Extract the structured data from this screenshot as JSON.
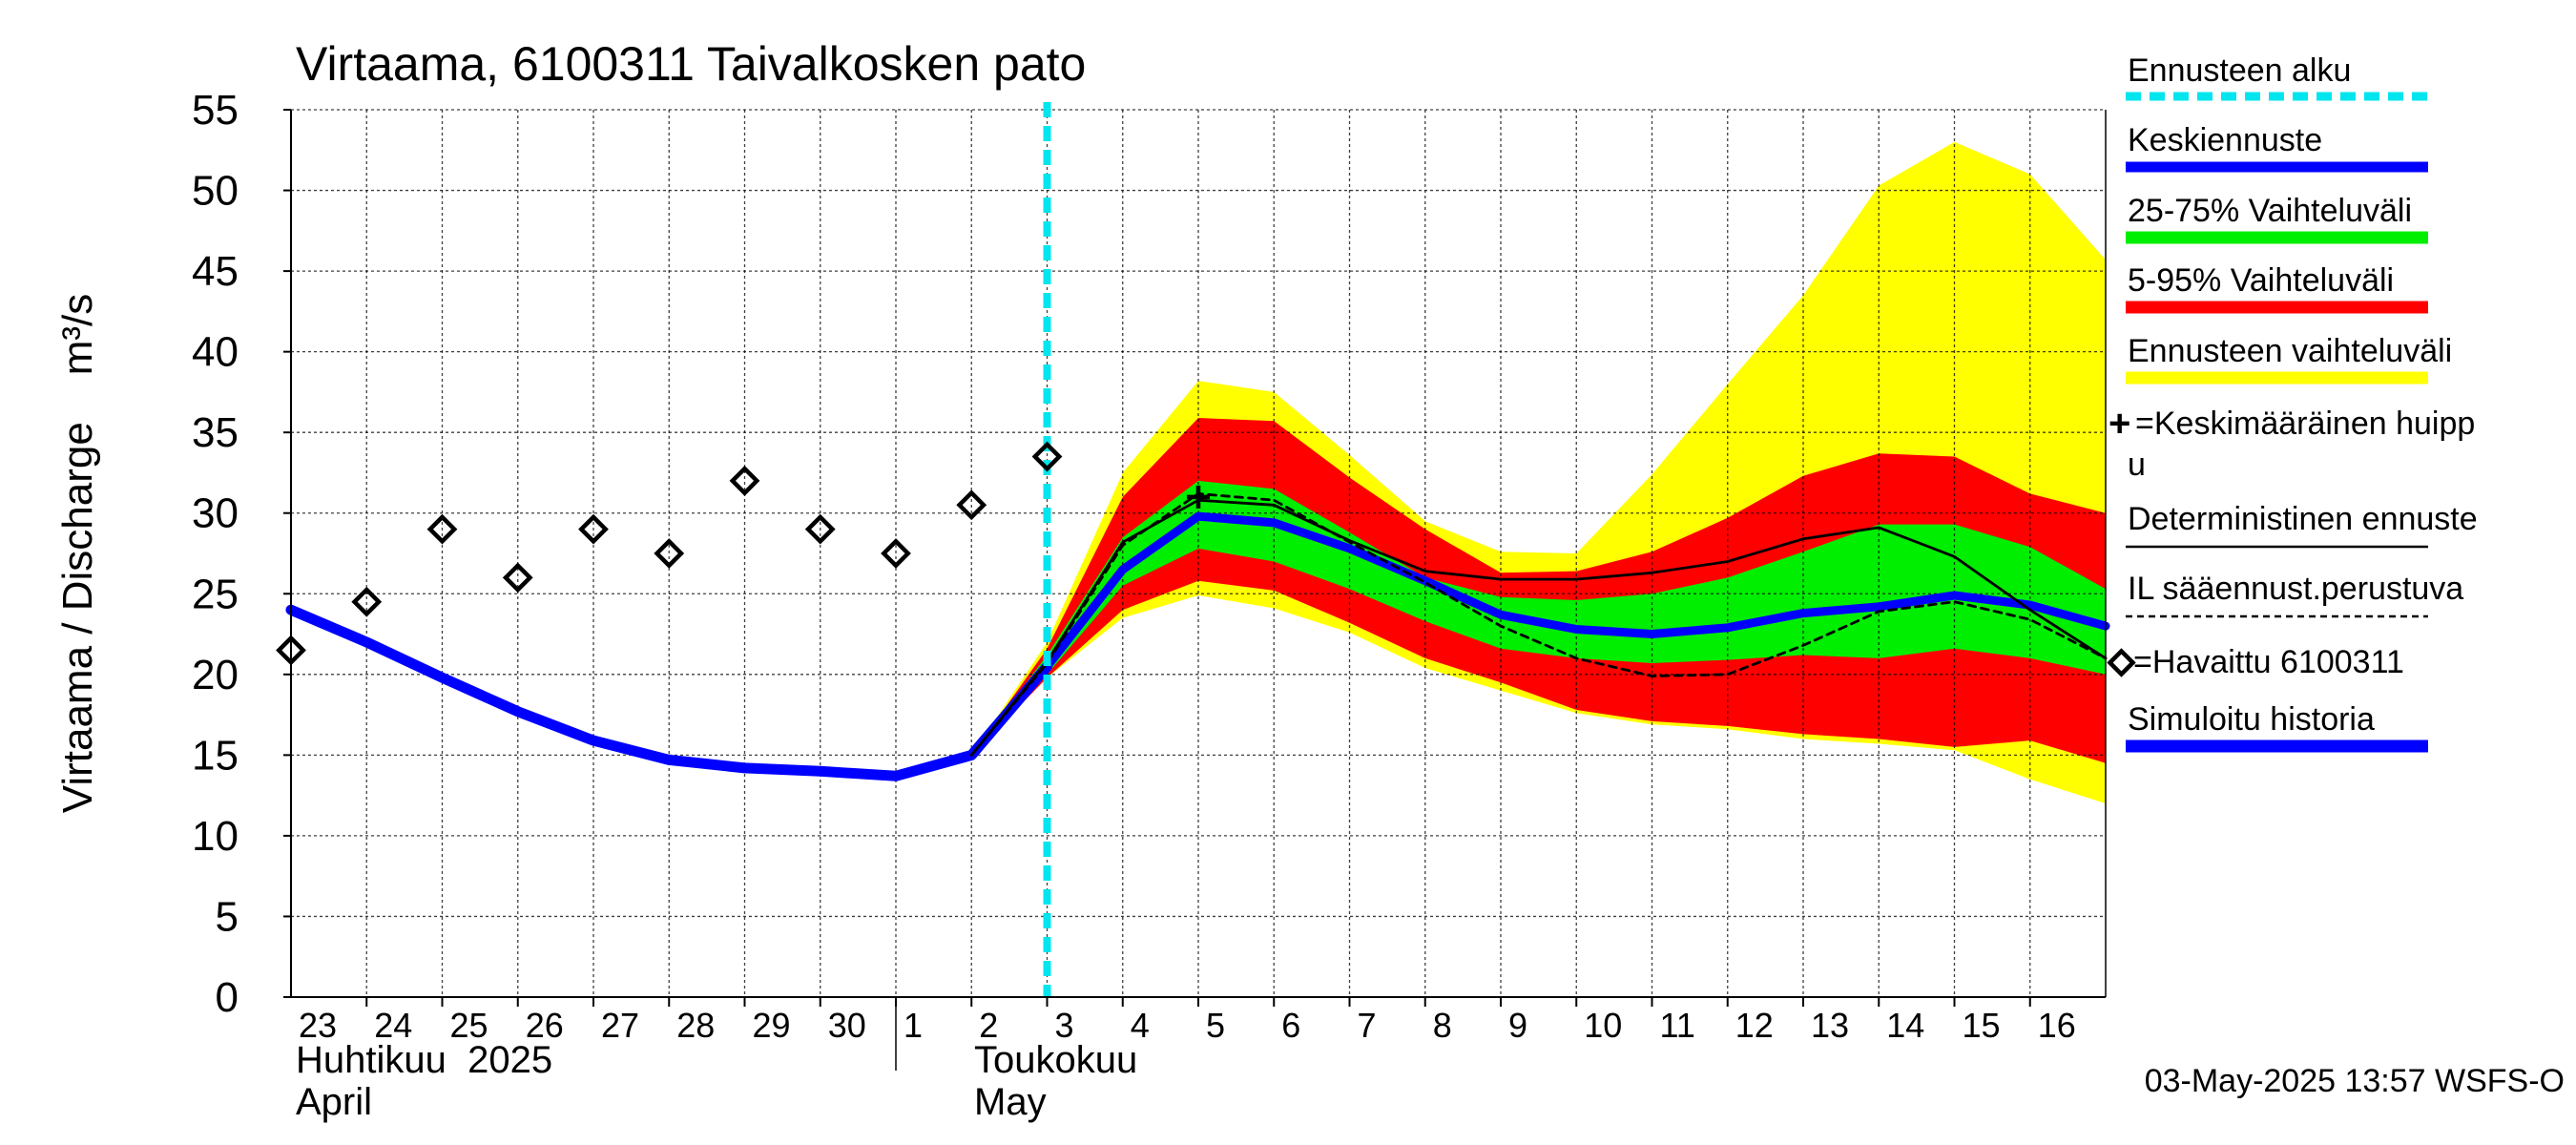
{
  "chart_data": {
    "type": "line",
    "title": "Virtaama, 6100311 Taivalkosken pato",
    "ylabel": "Virtaama / Discharge    m³/s",
    "ylim": [
      0,
      55
    ],
    "yticks": [
      0,
      5,
      10,
      15,
      20,
      25,
      30,
      35,
      40,
      45,
      50,
      55
    ],
    "xlim": [
      0,
      24
    ],
    "x_tick_labels": [
      "23",
      "24",
      "25",
      "26",
      "27",
      "28",
      "29",
      "30",
      "1",
      "2",
      "3",
      "4",
      "5",
      "6",
      "7",
      "8",
      "9",
      "10",
      "11",
      "12",
      "13",
      "14",
      "15",
      "16"
    ],
    "month_labels": [
      {
        "fi": "Huhtikuu  2025",
        "en": "April",
        "day_index": 0
      },
      {
        "fi": "Toukokuu",
        "en": "May",
        "day_index": 9
      }
    ],
    "month_separator_day_index": 8,
    "forecast_start_x": 10.0,
    "timestamp": "03-May-2025 13:57 WSFS-O",
    "legend": {
      "forecast_start": "Ennusteen alku",
      "mean_forecast": "Keskiennuste",
      "range_25_75": "25-75% Vaihteluväli",
      "range_5_95": "5-95% Vaihteluväli",
      "forecast_range": "Ennusteen vaihteluväli",
      "mean_peak_line1": "=Keskimääräinen huipp",
      "mean_peak_line2": "u",
      "deterministic": "Deterministinen ennuste",
      "il_based": "IL sääennust.perustuva",
      "observed": "=Havaittu 6100311",
      "simulated": "Simuloitu historia"
    },
    "colors": {
      "forecast_start": "#00e5ee",
      "mean_forecast": "#0000ff",
      "range_25_75": "#00ee00",
      "range_5_95": "#ff0000",
      "forecast_range": "#ffff00",
      "deterministic": "#000000",
      "simulated": "#0000ff"
    },
    "series": {
      "simulated_history": {
        "x": [
          0,
          1,
          2,
          3,
          4,
          5,
          6,
          7,
          8,
          9,
          10
        ],
        "y": [
          24,
          22,
          19.8,
          17.7,
          15.9,
          14.7,
          14.2,
          14.0,
          13.7,
          15.0,
          20.5
        ]
      },
      "mean_forecast": {
        "x": [
          10,
          11,
          12,
          13,
          14,
          15,
          16,
          17,
          18,
          19,
          20,
          21,
          22,
          23,
          24
        ],
        "y": [
          20.5,
          26.5,
          29.8,
          29.4,
          27.8,
          25.8,
          23.7,
          22.8,
          22.5,
          22.9,
          23.8,
          24.2,
          24.9,
          24.3,
          23.0
        ]
      },
      "deterministic": {
        "x": [
          9,
          10,
          11,
          12,
          13,
          14,
          15,
          16,
          17,
          18,
          19,
          20,
          21,
          22,
          23,
          24
        ],
        "y": [
          15.0,
          20.8,
          28.2,
          30.8,
          30.5,
          28.3,
          26.4,
          25.9,
          25.9,
          26.3,
          27.0,
          28.4,
          29.1,
          27.3,
          24.0,
          21.0
        ]
      },
      "il_based": {
        "x": [
          9,
          10,
          11,
          12,
          13,
          14,
          15,
          16,
          17,
          18,
          19,
          20,
          21,
          22,
          23,
          24
        ],
        "y": [
          15.0,
          20.7,
          28.0,
          31.2,
          30.8,
          28.2,
          25.7,
          23.0,
          21.0,
          19.9,
          20.0,
          21.8,
          23.9,
          24.5,
          23.4,
          21.0
        ]
      },
      "mean_peak": {
        "x": 12,
        "y": 31.0
      },
      "observed": {
        "x": [
          0,
          1,
          2,
          3,
          4,
          5,
          6,
          7,
          8,
          9,
          10
        ],
        "y": [
          21.5,
          24.5,
          29.0,
          26.0,
          29.0,
          27.5,
          32.0,
          29.0,
          27.5,
          30.5,
          33.5
        ]
      },
      "band_5_100": {
        "x": [
          9,
          10,
          11,
          12,
          13,
          14,
          15,
          16,
          17,
          18,
          19,
          20,
          21,
          22,
          23,
          24
        ],
        "lower": [
          15.0,
          19.8,
          23.5,
          24.9,
          24.1,
          22.6,
          20.4,
          19.0,
          17.6,
          16.9,
          16.6,
          16.0,
          15.7,
          15.3,
          13.5,
          12.0
        ],
        "upper": [
          15.0,
          22.0,
          32.5,
          38.2,
          37.5,
          33.6,
          29.5,
          27.6,
          27.5,
          32.4,
          38.0,
          43.5,
          50.3,
          53.0,
          51.0,
          45.7
        ]
      },
      "band_5_95": {
        "x": [
          9,
          10,
          11,
          12,
          13,
          14,
          15,
          16,
          17,
          18,
          19,
          20,
          21,
          22,
          23,
          24
        ],
        "lower": [
          15.0,
          19.8,
          24.0,
          25.8,
          25.2,
          23.2,
          21.0,
          19.5,
          17.8,
          17.1,
          16.8,
          16.3,
          16.0,
          15.5,
          15.9,
          14.5
        ],
        "upper": [
          15.0,
          21.6,
          31.0,
          35.9,
          35.7,
          32.2,
          29.0,
          26.3,
          26.4,
          27.6,
          29.7,
          32.3,
          33.7,
          33.5,
          31.2,
          30.0
        ]
      },
      "band_25_75": {
        "x": [
          9,
          10,
          11,
          12,
          13,
          14,
          15,
          16,
          17,
          18,
          19,
          20,
          21,
          22,
          23,
          24
        ],
        "lower": [
          15.0,
          20.0,
          25.5,
          27.8,
          27.0,
          25.3,
          23.3,
          21.6,
          21.0,
          20.7,
          20.9,
          21.2,
          21.0,
          21.6,
          21.0,
          20.0
        ],
        "upper": [
          15.0,
          21.2,
          28.5,
          32.0,
          31.5,
          28.8,
          26.0,
          24.8,
          24.6,
          25.0,
          26.0,
          27.6,
          29.3,
          29.3,
          27.9,
          25.3
        ]
      }
    }
  }
}
